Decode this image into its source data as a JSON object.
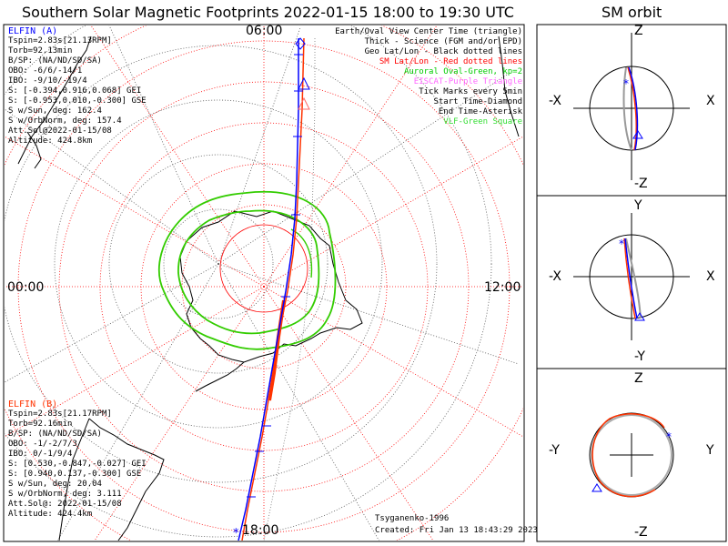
{
  "header": {
    "title": "Southern Solar Magnetic Footprints 2022-01-15 18:00 to 19:30 UTC",
    "orbit_title": "SM orbit"
  },
  "map": {
    "time_labels": {
      "top": "06:00",
      "left": "00:00",
      "right": "12:00",
      "bottom": "18:00"
    },
    "model": "Tsyganenko-1996",
    "created": "Created: Fri Jan 13 18:43:29 2023"
  },
  "legend": [
    {
      "text": "Earth/Oval View Center Time (triangle)",
      "color": "#000000"
    },
    {
      "text": "Thick - Science (FGM and/or EPD)",
      "color": "#000000"
    },
    {
      "text": "Geo Lat/Lon - Black dotted lines",
      "color": "#000000"
    },
    {
      "text": "SM Lat/Lon - Red dotted lines",
      "color": "#ff0000"
    },
    {
      "text": "Auroral Oval-Green, kp=2",
      "color": "#00cc00"
    },
    {
      "text": "EISCAT-Purple Triangle",
      "color": "#ff66ff"
    },
    {
      "text": "Tick Marks every 5min",
      "color": "#000000"
    },
    {
      "text": "Start Time-Diamond",
      "color": "#000000"
    },
    {
      "text": "End Time-Asterisk",
      "color": "#000000"
    },
    {
      "text": "VLF-Green Square",
      "color": "#33dd33"
    }
  ],
  "elfin_a": {
    "name": "ELFIN (A)",
    "color": "#0000ff",
    "lines": [
      "Tspin=2.83s[21.13RPM]",
      "Torb=92.13min",
      "B/SP: (NA/ND/SD/SA)",
      "OBO: -6/6/-14/1",
      "IBO: -9/10/-19/4",
      "S: [-0.394,0.916,0.068] GEI",
      "S: [-0.953,0.010,-0.300] GSE",
      "S w/Sun, deg: 162.4",
      "S w/OrbNorm, deg: 157.4",
      "Att.Sol@2022-01-15/08",
      "Altitude: 424.8km"
    ]
  },
  "elfin_b": {
    "name": "ELFIN (B)",
    "color": "#ff0000",
    "lines": [
      "Tspin=2.83s[21.17RPM]",
      "Torb=92.16min",
      "B/SP: (NA/ND/SD/SA)",
      "OBO: -1/-2/7/3",
      "IBO: 0/-1/9/4",
      "S: [0.530,-0.847,-0.027] GEI",
      "S: [0.940,0.137,-0.300] GSE",
      "S w/Sun, deg: 20.04",
      "S w/OrbNorm, deg: 3.111",
      "Att.Sol@: 2022-01-15/08",
      "Altitude: 424.4km"
    ]
  },
  "orbit_panels": [
    {
      "up": "Z",
      "down": "-Z",
      "left": "-X",
      "right": "X"
    },
    {
      "up": "Y",
      "down": "-Y",
      "left": "-X",
      "right": "X"
    },
    {
      "up": "Z",
      "down": "-Z",
      "left": "-Y",
      "right": "Y"
    }
  ],
  "colors": {
    "trace_a": "#0000ff",
    "trace_b": "#ff3300",
    "oval": "#33cc00",
    "grid_sm": "#ff0000"
  }
}
